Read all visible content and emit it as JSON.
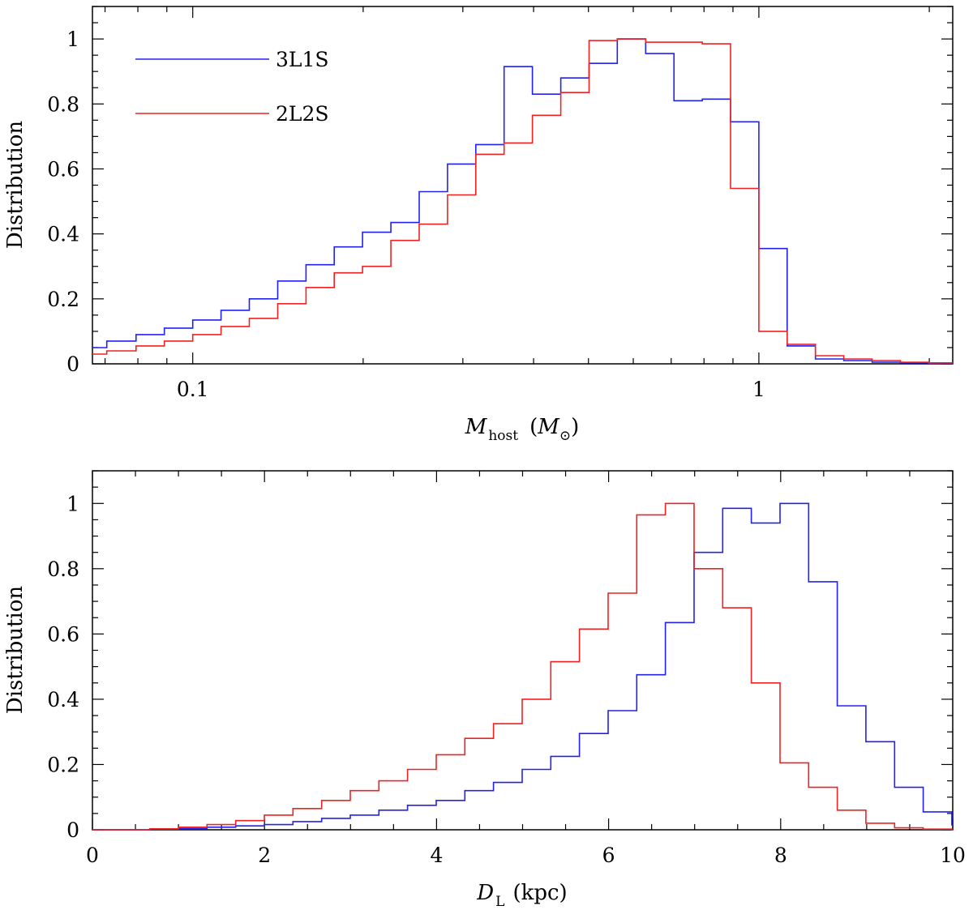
{
  "chart_data": [
    {
      "type": "step-histogram",
      "xscale": "log",
      "xlim": [
        0.0665,
        2.2
      ],
      "ylim": [
        0,
        1.1
      ],
      "xlabel": {
        "main": "M",
        "sub": "host",
        "unit_open": "(",
        "unit_main": "M",
        "unit_sub": "⊙",
        "unit_close": ")"
      },
      "ylabel": "Distribution",
      "xticks": [
        0.1,
        1
      ],
      "xtick_labels": [
        "0.1",
        "1"
      ],
      "yticks": [
        0,
        0.2,
        0.4,
        0.6,
        0.8,
        1
      ],
      "ytick_labels": [
        "0",
        "0.2",
        "0.4",
        "0.6",
        "0.8",
        "1"
      ],
      "legend": {
        "position": "top-left",
        "entries": [
          "3L1S",
          "2L2S"
        ]
      },
      "bin_edges": [
        0.0665,
        0.0794,
        0.1,
        0.126,
        0.1585,
        0.1995,
        0.2512,
        0.3162,
        0.3981,
        0.5012,
        0.631,
        0.7943,
        1.0,
        1.2589,
        1.5849,
        1.9953,
        2.2
      ],
      "series": [
        {
          "name": "3L1S",
          "color": "#2222ee",
          "edges": [
            0.0665,
            0.0705,
            0.0794,
            0.0891,
            0.1,
            0.1122,
            0.1259,
            0.1413,
            0.1585,
            0.1778,
            0.1995,
            0.2239,
            0.2512,
            0.2818,
            0.3162,
            0.3548,
            0.3981,
            0.4467,
            0.5012,
            0.5623,
            0.631,
            0.7079,
            0.7943,
            0.8913,
            1.0,
            1.122,
            1.2589,
            1.4125,
            1.5849,
            1.7783,
            1.9953,
            2.2
          ],
          "values": [
            0.05,
            0.07,
            0.09,
            0.11,
            0.135,
            0.165,
            0.2,
            0.255,
            0.305,
            0.36,
            0.405,
            0.435,
            0.53,
            0.615,
            0.675,
            0.915,
            0.83,
            0.88,
            0.925,
            1.0,
            0.955,
            0.81,
            0.815,
            0.745,
            0.355,
            0.055,
            0.015,
            0.01,
            0.005,
            0.003,
            0.002
          ]
        },
        {
          "name": "2L2S",
          "color": "#ee2222",
          "edges": [
            0.0665,
            0.0705,
            0.0794,
            0.0891,
            0.1,
            0.1122,
            0.1259,
            0.1413,
            0.1585,
            0.1778,
            0.1995,
            0.2239,
            0.2512,
            0.2818,
            0.3162,
            0.3548,
            0.3981,
            0.4467,
            0.5012,
            0.5623,
            0.631,
            0.7079,
            0.7943,
            0.8913,
            1.0,
            1.122,
            1.2589,
            1.4125,
            1.5849,
            1.7783,
            1.9953,
            2.2
          ],
          "values": [
            0.03,
            0.04,
            0.055,
            0.07,
            0.09,
            0.115,
            0.14,
            0.185,
            0.235,
            0.28,
            0.3,
            0.38,
            0.43,
            0.52,
            0.645,
            0.68,
            0.765,
            0.835,
            0.995,
            1.0,
            0.99,
            0.99,
            0.985,
            0.54,
            0.1,
            0.06,
            0.025,
            0.015,
            0.01,
            0.005,
            0.003
          ]
        }
      ]
    },
    {
      "type": "step-histogram",
      "xscale": "linear",
      "xlim": [
        0,
        10
      ],
      "ylim": [
        0,
        1.1
      ],
      "xlabel": {
        "main": "D",
        "sub": "L",
        "unit_open": "(kpc)"
      },
      "ylabel": "Distribution",
      "xticks": [
        0,
        2,
        4,
        6,
        8,
        10
      ],
      "xtick_labels": [
        "0",
        "2",
        "4",
        "6",
        "8",
        "10"
      ],
      "yticks": [
        0,
        0.2,
        0.4,
        0.6,
        0.8,
        1
      ],
      "ytick_labels": [
        "0",
        "0.2",
        "0.4",
        "0.6",
        "0.8",
        "1"
      ],
      "bin_width": 0.333,
      "series": [
        {
          "name": "3L1S",
          "color": "#2222ee",
          "start": 0,
          "values": [
            0,
            0,
            0.002,
            0.004,
            0.008,
            0.012,
            0.016,
            0.025,
            0.035,
            0.045,
            0.06,
            0.075,
            0.09,
            0.12,
            0.145,
            0.185,
            0.225,
            0.295,
            0.365,
            0.475,
            0.635,
            0.85,
            0.985,
            0.94,
            1.0,
            0.76,
            0.38,
            0.27,
            0.13,
            0.055,
            0.015
          ]
        },
        {
          "name": "2L2S",
          "color": "#ee2222",
          "start": 0,
          "values": [
            0,
            0,
            0.003,
            0.008,
            0.016,
            0.028,
            0.045,
            0.065,
            0.09,
            0.12,
            0.15,
            0.185,
            0.23,
            0.28,
            0.325,
            0.4,
            0.515,
            0.615,
            0.725,
            0.965,
            1.0,
            0.8,
            0.68,
            0.45,
            0.205,
            0.13,
            0.06,
            0.02,
            0.006,
            0.002,
            0
          ]
        }
      ]
    }
  ]
}
